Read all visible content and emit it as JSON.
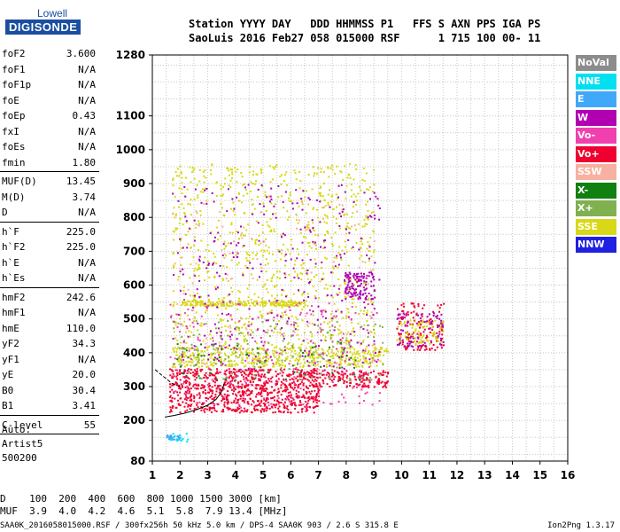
{
  "logo": {
    "line1": "Lowell",
    "line2": "DIGISONDE"
  },
  "header": {
    "line1": "Station YYYY DAY   DDD HHMMSS P1   FFS S AXN PPS IGA PS",
    "line2": "SaoLuis 2016 Feb27 058 015000 RSF      1 715 100 00- 11"
  },
  "params": {
    "group1": [
      {
        "k": "foF2",
        "v": "3.600"
      },
      {
        "k": "foF1",
        "v": "N/A"
      },
      {
        "k": "foF1p",
        "v": "N/A"
      },
      {
        "k": "foE",
        "v": "N/A"
      },
      {
        "k": "foEp",
        "v": "0.43"
      },
      {
        "k": "fxI",
        "v": "N/A"
      },
      {
        "k": "foEs",
        "v": "N/A"
      },
      {
        "k": "fmin",
        "v": "1.80"
      }
    ],
    "group2": [
      {
        "k": "MUF(D)",
        "v": "13.45"
      },
      {
        "k": "M(D)",
        "v": "3.74"
      },
      {
        "k": "D",
        "v": "N/A"
      }
    ],
    "group3": [
      {
        "k": "h`F",
        "v": "225.0"
      },
      {
        "k": "h`F2",
        "v": "225.0"
      },
      {
        "k": "h`E",
        "v": "N/A"
      },
      {
        "k": "h`Es",
        "v": "N/A"
      }
    ],
    "group4": [
      {
        "k": "hmF2",
        "v": "242.6"
      },
      {
        "k": "hmF1",
        "v": "N/A"
      },
      {
        "k": "hmE",
        "v": "110.0"
      },
      {
        "k": "yF2",
        "v": "34.3"
      },
      {
        "k": "yF1",
        "v": "N/A"
      },
      {
        "k": "yE",
        "v": "20.0"
      },
      {
        "k": "B0",
        "v": "30.4"
      },
      {
        "k": "B1",
        "v": "3.41"
      }
    ],
    "group5": [
      {
        "k": "C-level",
        "v": "55"
      }
    ]
  },
  "auto": {
    "line1": "Auto:",
    "line2": "Artist5",
    "line3": "500200"
  },
  "legend": [
    {
      "label": "NoVal",
      "color": "#8c8c8c"
    },
    {
      "label": "NNE",
      "color": "#00e0f0"
    },
    {
      "label": "E",
      "color": "#40a8f8"
    },
    {
      "label": "W",
      "color": "#b000b0"
    },
    {
      "label": "Vo-",
      "color": "#f040b0"
    },
    {
      "label": "Vo+",
      "color": "#f00030"
    },
    {
      "label": "SSW",
      "color": "#f8b0a0"
    },
    {
      "label": "X-",
      "color": "#108010"
    },
    {
      "label": "X+",
      "color": "#80b050"
    },
    {
      "label": "SSE",
      "color": "#d8d818"
    },
    {
      "label": "NNW",
      "color": "#2020e0"
    }
  ],
  "muf_table": {
    "line1": "D    100  200  400  600  800 1000 1500 3000 [km]",
    "line2": "MUF  3.9  4.0  4.2  4.6  5.1  5.8  7.9 13.4 [MHz]"
  },
  "footer": {
    "file": "SAA0K_2016058015000.RSF / 300fx256h 50 kHz 5.0 km / DPS-4 SAA0K 903 / 2.6 S 315.8 E",
    "version": "Ion2Png 1.3.17"
  },
  "chart_data": {
    "type": "scatter",
    "title": "",
    "xlabel": "",
    "ylabel": "",
    "xlim": [
      1,
      16
    ],
    "ylim": [
      80,
      1280
    ],
    "x_ticks": [
      "1",
      "2",
      "3",
      "4",
      "5",
      "6",
      "7",
      "8",
      "9",
      "10",
      "11",
      "12",
      "13",
      "14",
      "15",
      "16"
    ],
    "y_ticks": [
      {
        "value": 80,
        "label": "80"
      },
      {
        "value": 200,
        "label": "200"
      },
      {
        "value": 300,
        "label": "300"
      },
      {
        "value": 400,
        "label": "400"
      },
      {
        "value": 500,
        "label": "500"
      },
      {
        "value": 600,
        "label": "600"
      },
      {
        "value": 700,
        "label": "700"
      },
      {
        "value": 800,
        "label": "800"
      },
      {
        "value": 900,
        "label": "900"
      },
      {
        "value": 1000,
        "label": "1000"
      },
      {
        "value": 1100,
        "label": "1100"
      },
      {
        "value": 1280,
        "label": "1280"
      }
    ],
    "grid": true,
    "grid_step_x": 0.5,
    "grid_step_y": 50,
    "clusters": [
      {
        "color": "#f00030",
        "x": [
          1.6,
          7.0
        ],
        "h": [
          225,
          355
        ],
        "n": 900
      },
      {
        "color": "#f00030",
        "x": [
          7.0,
          9.5
        ],
        "h": [
          300,
          350
        ],
        "n": 150
      },
      {
        "color": "#d8d818",
        "x": [
          1.7,
          9.5
        ],
        "h": [
          360,
          420
        ],
        "n": 500
      },
      {
        "color": "#d8d818",
        "x": [
          1.7,
          9.0
        ],
        "h": [
          420,
          960
        ],
        "n": 900
      },
      {
        "color": "#d8d818",
        "x": [
          2.0,
          6.5
        ],
        "h": [
          540,
          556
        ],
        "n": 220
      },
      {
        "color": "#b000b0",
        "x": [
          1.7,
          9.2
        ],
        "h": [
          350,
          900
        ],
        "n": 350
      },
      {
        "color": "#b000b0",
        "x": [
          7.9,
          9.0
        ],
        "h": [
          560,
          640
        ],
        "n": 120
      },
      {
        "color": "#f040b0",
        "x": [
          1.6,
          9.2
        ],
        "h": [
          240,
          560
        ],
        "n": 250
      },
      {
        "color": "#80b050",
        "x": [
          1.7,
          9.3
        ],
        "h": [
          320,
          500
        ],
        "n": 160
      },
      {
        "color": "#108010",
        "x": [
          1.7,
          8.5
        ],
        "h": [
          320,
          440
        ],
        "n": 60
      },
      {
        "color": "#f8b0a0",
        "x": [
          1.7,
          9.0
        ],
        "h": [
          350,
          850
        ],
        "n": 90
      },
      {
        "color": "#f00030",
        "x": [
          9.8,
          11.5
        ],
        "h": [
          410,
          550
        ],
        "n": 140
      },
      {
        "color": "#d8d818",
        "x": [
          9.8,
          11.5
        ],
        "h": [
          420,
          500
        ],
        "n": 90
      },
      {
        "color": "#b000b0",
        "x": [
          9.8,
          11.5
        ],
        "h": [
          420,
          520
        ],
        "n": 80
      },
      {
        "color": "#40a8f8",
        "x": [
          1.5,
          2.0
        ],
        "h": [
          145,
          160
        ],
        "n": 25
      },
      {
        "color": "#00e0f0",
        "x": [
          1.6,
          2.3
        ],
        "h": [
          140,
          165
        ],
        "n": 15
      }
    ],
    "trace_curve": {
      "color": "#000000",
      "x": [
        1.45,
        1.8,
        2.2,
        2.6,
        3.0,
        3.3,
        3.5,
        3.6
      ],
      "h": [
        210,
        215,
        222,
        232,
        245,
        262,
        285,
        310
      ]
    },
    "trace_curve_upper": {
      "color": "#000000",
      "x": [
        1.1,
        1.4,
        1.7,
        2.0
      ],
      "h": [
        350,
        330,
        310,
        300
      ]
    }
  }
}
